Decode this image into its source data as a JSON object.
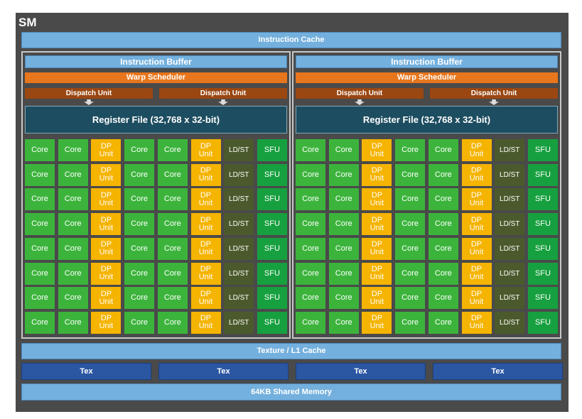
{
  "label": "SM",
  "instruction_cache": "Instruction Cache",
  "blocks": [
    {
      "instruction_buffer": "Instruction Buffer",
      "warp_scheduler": "Warp Scheduler",
      "dispatch_units": [
        "Dispatch Unit",
        "Dispatch Unit"
      ],
      "register_file": "Register File (32,768 x 32-bit)",
      "rows": [
        [
          "Core",
          "Core",
          "DP Unit",
          "Core",
          "Core",
          "DP Unit",
          "LD/ST",
          "SFU"
        ],
        [
          "Core",
          "Core",
          "DP Unit",
          "Core",
          "Core",
          "DP Unit",
          "LD/ST",
          "SFU"
        ],
        [
          "Core",
          "Core",
          "DP Unit",
          "Core",
          "Core",
          "DP Unit",
          "LD/ST",
          "SFU"
        ],
        [
          "Core",
          "Core",
          "DP Unit",
          "Core",
          "Core",
          "DP Unit",
          "LD/ST",
          "SFU"
        ],
        [
          "Core",
          "Core",
          "DP Unit",
          "Core",
          "Core",
          "DP Unit",
          "LD/ST",
          "SFU"
        ],
        [
          "Core",
          "Core",
          "DP Unit",
          "Core",
          "Core",
          "DP Unit",
          "LD/ST",
          "SFU"
        ],
        [
          "Core",
          "Core",
          "DP Unit",
          "Core",
          "Core",
          "DP Unit",
          "LD/ST",
          "SFU"
        ],
        [
          "Core",
          "Core",
          "DP Unit",
          "Core",
          "Core",
          "DP Unit",
          "LD/ST",
          "SFU"
        ]
      ]
    },
    {
      "instruction_buffer": "Instruction Buffer",
      "warp_scheduler": "Warp Scheduler",
      "dispatch_units": [
        "Dispatch Unit",
        "Dispatch Unit"
      ],
      "register_file": "Register File (32,768 x 32-bit)",
      "rows": [
        [
          "Core",
          "Core",
          "DP Unit",
          "Core",
          "Core",
          "DP Unit",
          "LD/ST",
          "SFU"
        ],
        [
          "Core",
          "Core",
          "DP Unit",
          "Core",
          "Core",
          "DP Unit",
          "LD/ST",
          "SFU"
        ],
        [
          "Core",
          "Core",
          "DP Unit",
          "Core",
          "Core",
          "DP Unit",
          "LD/ST",
          "SFU"
        ],
        [
          "Core",
          "Core",
          "DP Unit",
          "Core",
          "Core",
          "DP Unit",
          "LD/ST",
          "SFU"
        ],
        [
          "Core",
          "Core",
          "DP Unit",
          "Core",
          "Core",
          "DP Unit",
          "LD/ST",
          "SFU"
        ],
        [
          "Core",
          "Core",
          "DP Unit",
          "Core",
          "Core",
          "DP Unit",
          "LD/ST",
          "SFU"
        ],
        [
          "Core",
          "Core",
          "DP Unit",
          "Core",
          "Core",
          "DP Unit",
          "LD/ST",
          "SFU"
        ],
        [
          "Core",
          "Core",
          "DP Unit",
          "Core",
          "Core",
          "DP Unit",
          "LD/ST",
          "SFU"
        ]
      ]
    }
  ],
  "texture_cache": "Texture / L1 Cache",
  "tex_units": [
    "Tex",
    "Tex",
    "Tex",
    "Tex"
  ],
  "shared_memory": "64KB Shared Memory"
}
